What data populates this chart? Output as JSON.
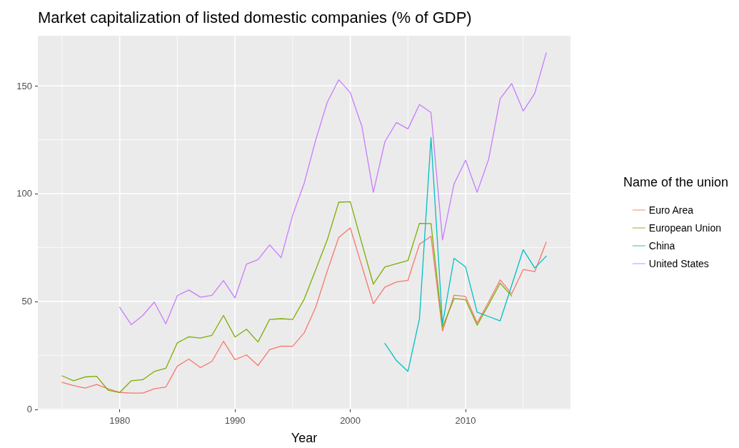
{
  "chart_data": {
    "type": "line",
    "title": "Market capitalization of listed domestic companies (% of GDP)",
    "xlabel": "Year",
    "legend_title": "Name of the union",
    "x": [
      1975,
      1976,
      1977,
      1978,
      1979,
      1980,
      1981,
      1982,
      1983,
      1984,
      1985,
      1986,
      1987,
      1988,
      1989,
      1990,
      1991,
      1992,
      1993,
      1994,
      1995,
      1996,
      1997,
      1998,
      1999,
      2000,
      2001,
      2002,
      2003,
      2004,
      2005,
      2006,
      2007,
      2008,
      2009,
      2010,
      2011,
      2012,
      2013,
      2014,
      2015,
      2016,
      2017
    ],
    "series": [
      {
        "name": "Euro Area",
        "color": "#f8766d",
        "values": [
          12.5,
          11,
          9.8,
          11.5,
          9.5,
          7.8,
          7.5,
          7.5,
          9.5,
          10.3,
          20,
          23.3,
          19.3,
          22.2,
          31.5,
          23,
          25.2,
          20.3,
          27.6,
          29.3,
          29.2,
          35.4,
          47.3,
          64,
          79.7,
          84.1,
          66.5,
          48.9,
          56.6,
          59,
          59.8,
          76.5,
          80.2,
          36.3,
          52.9,
          52.3,
          40,
          49.8,
          60,
          53.5,
          64.8,
          63.8,
          77.5
        ]
      },
      {
        "name": "European Union",
        "color": "#7cae00",
        "values": [
          15.5,
          13.2,
          15,
          15.3,
          8.8,
          7.8,
          13.2,
          13.7,
          17.5,
          19,
          30.8,
          33.6,
          33,
          34.3,
          43.5,
          33.5,
          37.1,
          31.2,
          41.6,
          42,
          41.6,
          51,
          64.7,
          78.5,
          96,
          96.2,
          77,
          58,
          66,
          67.5,
          69,
          86.2,
          86.1,
          38,
          51.3,
          50.8,
          39,
          48.5,
          58.5,
          52.5,
          null,
          null,
          null
        ]
      },
      {
        "name": "China",
        "color": "#00bfc4",
        "values": [
          null,
          null,
          null,
          null,
          null,
          null,
          null,
          null,
          null,
          null,
          null,
          null,
          null,
          null,
          null,
          null,
          null,
          null,
          null,
          null,
          null,
          null,
          null,
          null,
          null,
          null,
          null,
          null,
          30.5,
          22.6,
          17.6,
          42,
          126,
          39.5,
          70,
          66,
          45,
          43,
          41,
          57.5,
          74,
          65.5,
          71
        ]
      },
      {
        "name": "United States",
        "color": "#c77cff",
        "values": [
          null,
          null,
          null,
          null,
          null,
          47.3,
          39.2,
          43.5,
          49.7,
          39.6,
          52.7,
          55.3,
          52,
          52.8,
          59.7,
          51.6,
          67.3,
          69.4,
          76.2,
          70.3,
          90,
          104.8,
          124.8,
          142.3,
          152.8,
          146.8,
          131.3,
          100.6,
          124,
          133,
          130,
          141.3,
          137.6,
          78.5,
          104.5,
          115.5,
          100.6,
          115.9,
          144,
          151,
          138.3,
          146.5,
          165.3
        ]
      }
    ],
    "xlim": [
      1972.9,
      2019.1
    ],
    "xticks": [
      {
        "value": 1975,
        "label": null
      },
      1980,
      {
        "value": 1985,
        "label": null
      },
      1990,
      {
        "value": 1995,
        "label": null
      },
      2000,
      {
        "value": 2005,
        "label": null
      },
      2010,
      {
        "value": 2015,
        "label": null
      }
    ],
    "ylim": [
      -0.4,
      173.2
    ],
    "yticks": [
      0,
      {
        "value": 25,
        "label": null
      },
      50,
      {
        "value": 75,
        "label": null
      },
      100,
      {
        "value": 125,
        "label": null
      },
      150
    ],
    "grid": true,
    "legend": "right",
    "marker": "none",
    "line_style": "solid"
  }
}
